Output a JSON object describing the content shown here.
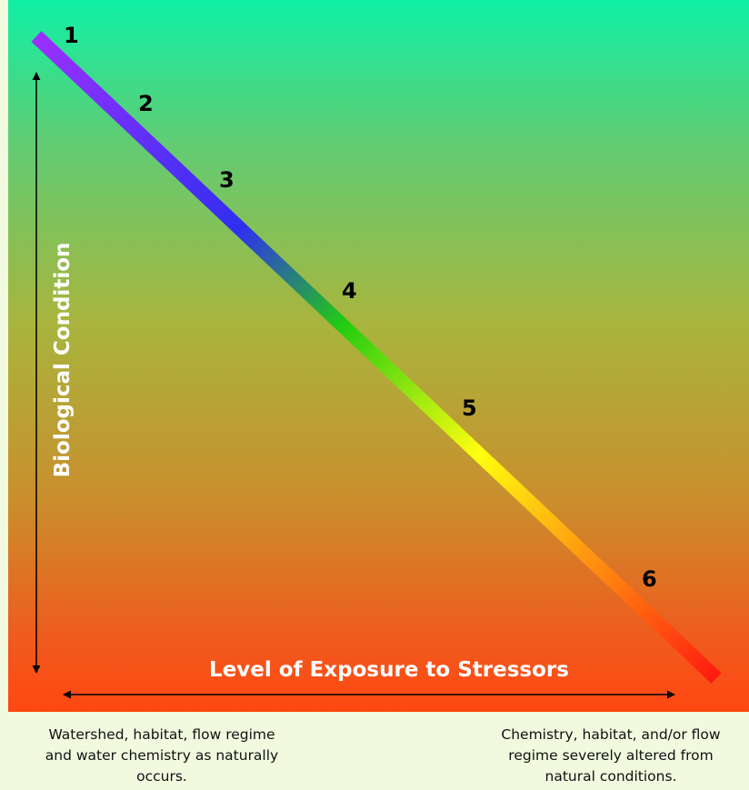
{
  "labels": {
    "y_axis": "Biological Condition",
    "x_axis": "Level of Exposure to Stressors"
  },
  "points": [
    "1",
    "2",
    "3",
    "4",
    "5",
    "6"
  ],
  "captions": {
    "left": [
      "Watershed, habitat, flow regime",
      "and water chemistry as naturally",
      "occurs."
    ],
    "right": [
      "Chemistry, habitat, and/or flow",
      "regime severely altered from",
      "natural conditions."
    ]
  },
  "colors": {
    "background_top": "#10f0a6",
    "background_bottom": "#ff4712",
    "page_background": "#f1fadf",
    "line_start": "#9b30ff",
    "line_blue": "#2f2ff0",
    "line_green": "#22cc10",
    "line_yellow": "#ffff10",
    "line_end": "#ff1a10"
  }
}
